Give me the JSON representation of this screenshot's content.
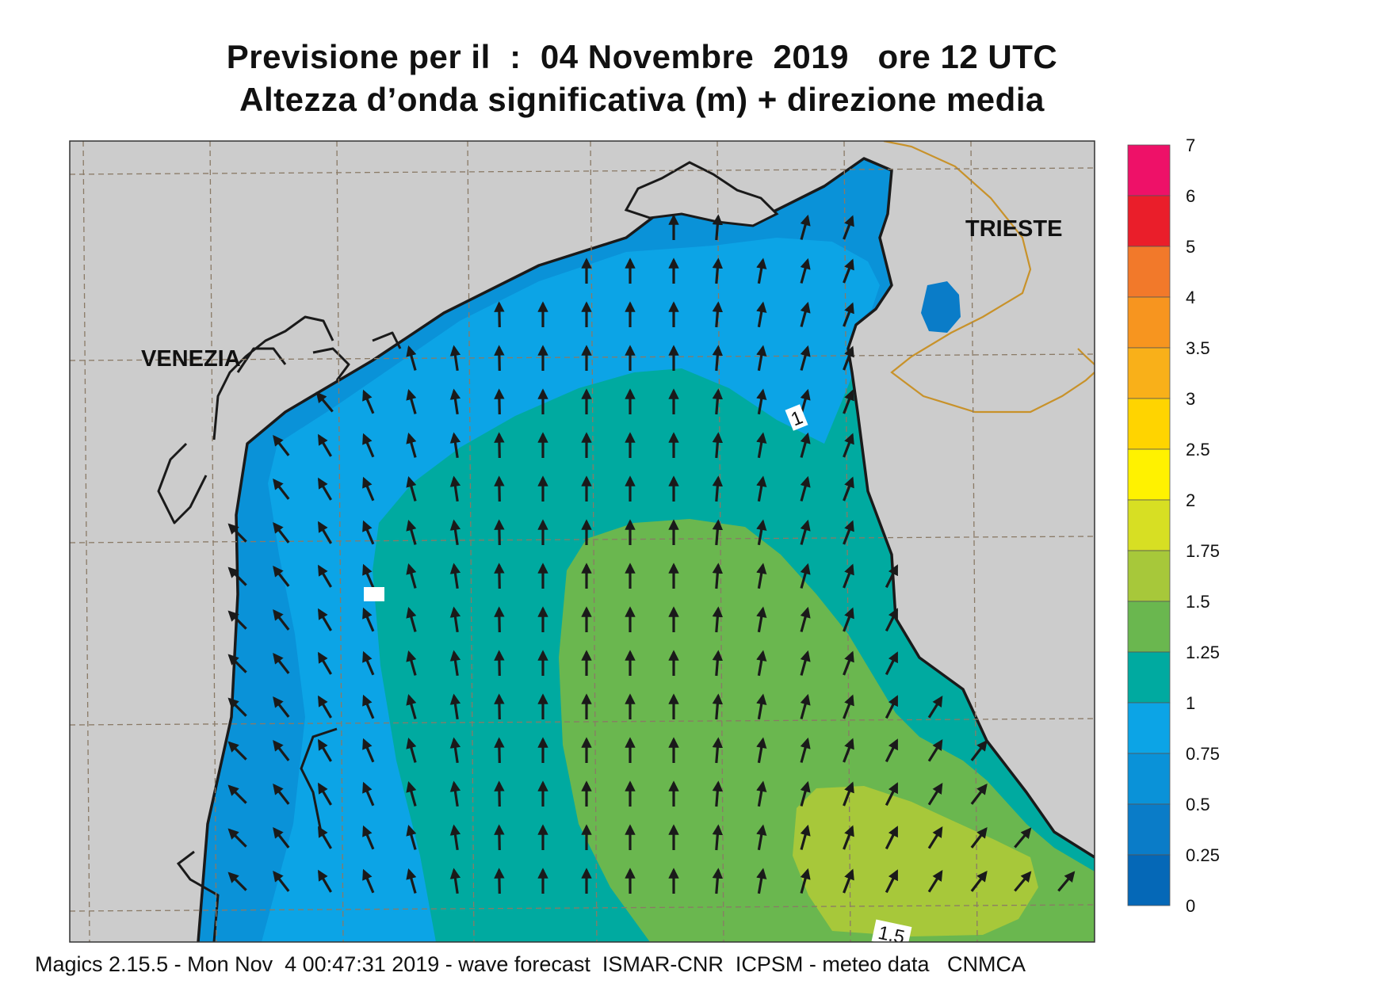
{
  "title_line1": "Previsione per il  :  04 Novembre  2019   ore 12 UTC",
  "title_line2": "Altezza d’onda significativa (m) + direzione media",
  "footer": "Magics 2.15.5 - Mon Nov  4 00:47:31 2019 - wave forecast  ISMAR-CNR  ICPSM - meteo data   CNMCA",
  "cities": [
    {
      "name": "VENEZIA"
    },
    {
      "name": "TRIESTE"
    }
  ],
  "contour_labels": [
    "1",
    "1.5"
  ],
  "colors": {
    "land": "#cccccc",
    "coast": "#1a1a1a",
    "border": "#c8922a",
    "grid": "#8a7a66",
    "arrow": "#1a1a1a"
  },
  "legend": {
    "ticks": [
      "7",
      "6",
      "5",
      "4",
      "3.5",
      "3",
      "2.5",
      "2",
      "1.75",
      "1.5",
      "1.25",
      "1",
      "0.75",
      "0.5",
      "0.25",
      "0"
    ],
    "bins": [
      {
        "from": 6,
        "to": 7,
        "color": "#ee1168"
      },
      {
        "from": 5,
        "to": 6,
        "color": "#ea1e2a"
      },
      {
        "from": 4,
        "to": 5,
        "color": "#f2792a"
      },
      {
        "from": 3.5,
        "to": 4,
        "color": "#f7951f"
      },
      {
        "from": 3,
        "to": 3.5,
        "color": "#f9b019"
      },
      {
        "from": 2.5,
        "to": 3,
        "color": "#ffd400"
      },
      {
        "from": 2,
        "to": 2.5,
        "color": "#fff200"
      },
      {
        "from": 1.75,
        "to": 2,
        "color": "#d7df23"
      },
      {
        "from": 1.5,
        "to": 1.75,
        "color": "#a7c83a"
      },
      {
        "from": 1.25,
        "to": 1.5,
        "color": "#6ab74f"
      },
      {
        "from": 1,
        "to": 1.25,
        "color": "#00aaa0"
      },
      {
        "from": 0.75,
        "to": 1,
        "color": "#0ca4e6"
      },
      {
        "from": 0.5,
        "to": 0.75,
        "color": "#0a92d8"
      },
      {
        "from": 0.25,
        "to": 0.5,
        "color": "#0a7cc8"
      },
      {
        "from": 0,
        "to": 0.25,
        "color": "#0568b7"
      }
    ]
  }
}
